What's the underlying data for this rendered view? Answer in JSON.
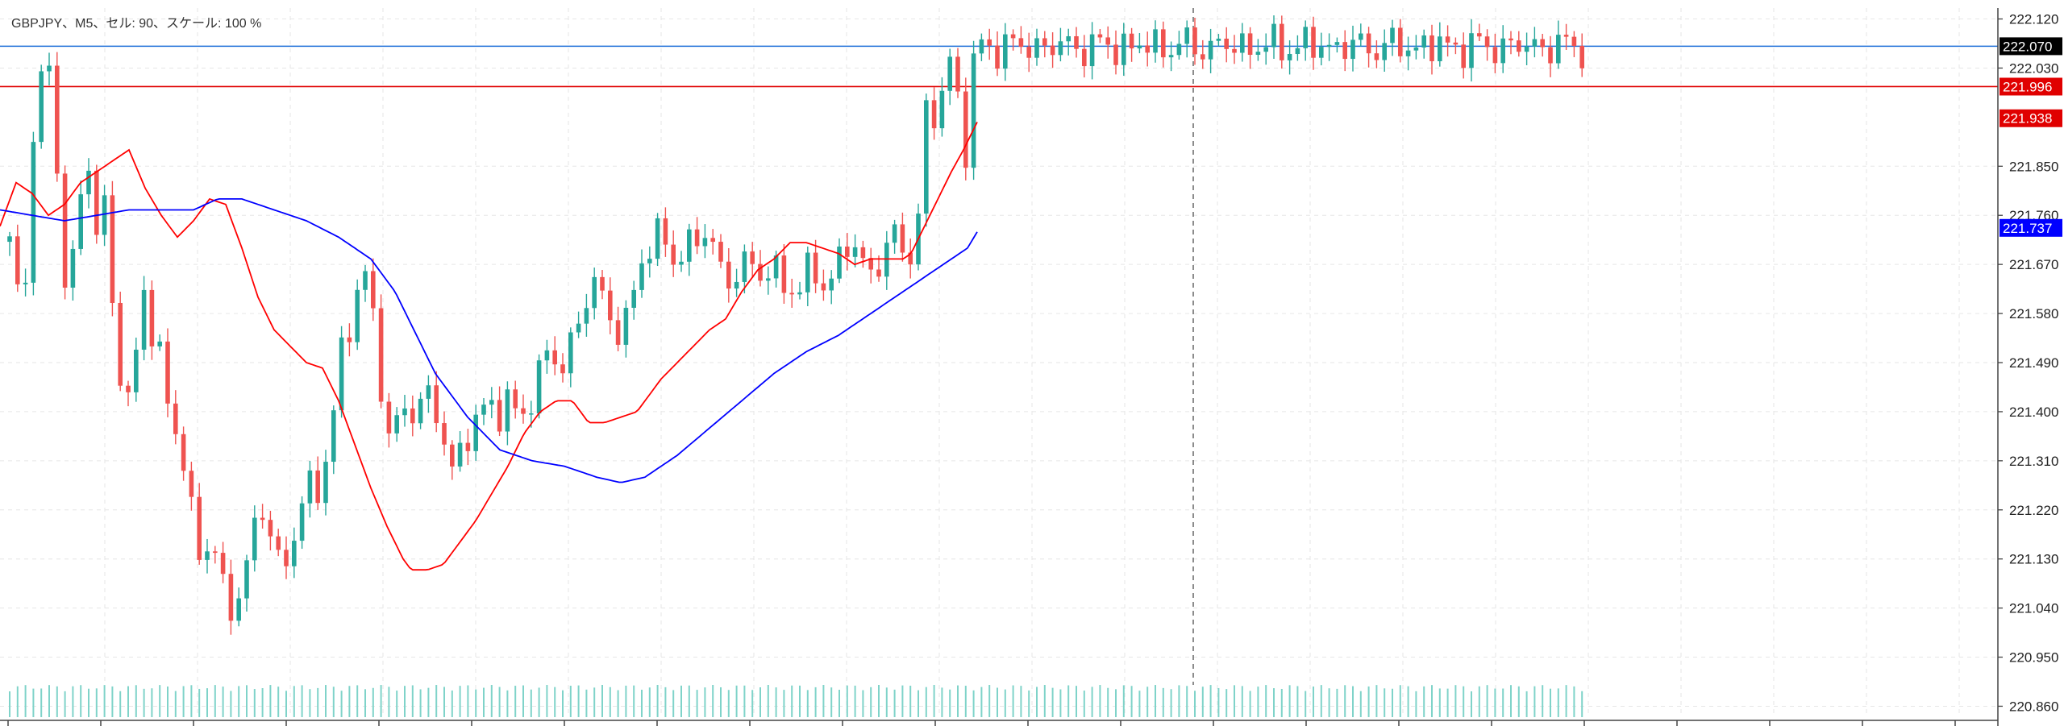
{
  "header": {
    "title": "GBPJPY、M5、セル: 90、スケール: 100 %"
  },
  "colors": {
    "bull": "#26a69a",
    "bear": "#ef5350",
    "ma_fast": "#ff0000",
    "ma_slow": "#0000ff",
    "hline_red": "#e00000",
    "hline_blue": "#1e6fd9",
    "grid": "#e6e6e6",
    "axis_text": "#222222"
  },
  "chart_data": {
    "type": "candlestick",
    "symbol": "GBPJPY",
    "timeframe": "M5",
    "ylim": [
      220.84,
      222.14
    ],
    "y_ticks": [
      "222.120",
      "222.030",
      "221.850",
      "221.760",
      "221.670",
      "221.580",
      "221.490",
      "221.400",
      "221.310",
      "221.220",
      "221.130",
      "221.040",
      "220.950",
      "220.860"
    ],
    "price_tags": [
      {
        "value": "222.070",
        "style": "current",
        "color": "#000000"
      },
      {
        "value": "221.996",
        "style": "level",
        "color": "#e00000"
      },
      {
        "value": "221.938",
        "style": "ma",
        "color": "#e00000"
      },
      {
        "value": "221.737",
        "style": "ma",
        "color": "#0000ff"
      }
    ],
    "horizontal_lines": [
      {
        "value": 222.07,
        "color": "#1e6fd9"
      },
      {
        "value": 221.996,
        "color": "#e00000"
      }
    ],
    "grid": true,
    "ma_fast_period_label": "",
    "ma_slow_period_label": "",
    "candle_count": 200,
    "anchors": [
      [
        0,
        221.93
      ],
      [
        8,
        221.86
      ],
      [
        12,
        221.7
      ],
      [
        22,
        221.62
      ],
      [
        30,
        221.56
      ],
      [
        36,
        221.84
      ],
      [
        46,
        222.02
      ],
      [
        56,
        221.98
      ],
      [
        62,
        222.03
      ],
      [
        68,
        221.95
      ],
      [
        74,
        221.7
      ],
      [
        80,
        221.66
      ],
      [
        86,
        221.62
      ],
      [
        92,
        221.7
      ],
      [
        100,
        221.8
      ],
      [
        112,
        221.86
      ],
      [
        120,
        221.72
      ],
      [
        128,
        221.8
      ],
      [
        140,
        221.6
      ],
      [
        152,
        221.44
      ],
      [
        162,
        221.41
      ],
      [
        168,
        221.48
      ],
      [
        178,
        221.63
      ],
      [
        186,
        221.56
      ],
      [
        196,
        221.53
      ],
      [
        204,
        221.45
      ],
      [
        212,
        221.38
      ],
      [
        222,
        221.34
      ],
      [
        232,
        221.28
      ],
      [
        240,
        221.18
      ],
      [
        252,
        221.13
      ],
      [
        262,
        221.18
      ],
      [
        272,
        221.1
      ],
      [
        282,
        221.02
      ],
      [
        292,
        221.06
      ],
      [
        302,
        221.1
      ],
      [
        312,
        221.16
      ],
      [
        322,
        221.22
      ],
      [
        332,
        221.2
      ],
      [
        342,
        221.14
      ],
      [
        352,
        221.11
      ],
      [
        362,
        221.16
      ],
      [
        372,
        221.22
      ],
      [
        382,
        221.26
      ],
      [
        392,
        221.24
      ],
      [
        400,
        221.3
      ],
      [
        410,
        221.36
      ],
      [
        420,
        221.48
      ],
      [
        432,
        221.54
      ],
      [
        440,
        221.6
      ],
      [
        448,
        221.66
      ],
      [
        456,
        221.66
      ],
      [
        464,
        221.56
      ],
      [
        476,
        221.4
      ],
      [
        484,
        221.33
      ],
      [
        496,
        221.4
      ],
      [
        506,
        221.42
      ],
      [
        518,
        221.4
      ],
      [
        528,
        221.43
      ],
      [
        538,
        221.4
      ],
      [
        546,
        221.38
      ],
      [
        554,
        221.34
      ],
      [
        562,
        221.29
      ],
      [
        572,
        221.33
      ],
      [
        584,
        221.36
      ],
      [
        596,
        221.4
      ],
      [
        608,
        221.42
      ],
      [
        622,
        221.4
      ],
      [
        632,
        221.42
      ],
      [
        642,
        221.38
      ],
      [
        652,
        221.4
      ],
      [
        660,
        221.44
      ],
      [
        670,
        221.48
      ],
      [
        680,
        221.51
      ],
      [
        688,
        221.49
      ],
      [
        698,
        221.48
      ],
      [
        706,
        221.52
      ],
      [
        716,
        221.56
      ],
      [
        724,
        221.6
      ],
      [
        734,
        221.64
      ],
      [
        742,
        221.62
      ],
      [
        752,
        221.58
      ],
      [
        764,
        221.56
      ],
      [
        774,
        221.56
      ],
      [
        784,
        221.6
      ],
      [
        794,
        221.66
      ],
      [
        804,
        221.7
      ],
      [
        814,
        221.73
      ],
      [
        826,
        221.72
      ],
      [
        836,
        221.67
      ],
      [
        846,
        221.68
      ],
      [
        856,
        221.7
      ],
      [
        866,
        221.73
      ],
      [
        876,
        221.74
      ],
      [
        886,
        221.7
      ],
      [
        896,
        221.63
      ],
      [
        906,
        221.64
      ],
      [
        916,
        221.66
      ],
      [
        926,
        221.69
      ],
      [
        936,
        221.66
      ],
      [
        948,
        221.64
      ],
      [
        960,
        221.66
      ],
      [
        972,
        221.64
      ],
      [
        982,
        221.63
      ],
      [
        992,
        221.62
      ],
      [
        1002,
        221.65
      ],
      [
        1012,
        221.66
      ],
      [
        1022,
        221.63
      ],
      [
        1032,
        221.65
      ],
      [
        1042,
        221.68
      ],
      [
        1052,
        221.71
      ],
      [
        1062,
        221.69
      ],
      [
        1072,
        221.67
      ],
      [
        1082,
        221.66
      ],
      [
        1092,
        221.68
      ],
      [
        1102,
        221.7
      ],
      [
        1112,
        221.72
      ],
      [
        1122,
        221.7
      ],
      [
        1132,
        221.69
      ],
      [
        1140,
        221.77
      ],
      [
        1146,
        221.92
      ],
      [
        1152,
        221.97
      ],
      [
        1158,
        221.94
      ],
      [
        1164,
        221.93
      ],
      [
        1172,
        222.03
      ],
      [
        1178,
        222.05
      ],
      [
        1184,
        222.05
      ],
      [
        1190,
        221.94
      ],
      [
        1196,
        221.86
      ],
      [
        1202,
        221.93
      ],
      [
        1208,
        222.04
      ],
      [
        1212,
        222.06
      ],
      [
        1215,
        222.07
      ]
    ],
    "ma_fast_anchors": [
      [
        0,
        221.74
      ],
      [
        20,
        221.82
      ],
      [
        40,
        221.8
      ],
      [
        60,
        221.76
      ],
      [
        80,
        221.78
      ],
      [
        100,
        221.82
      ],
      [
        120,
        221.84
      ],
      [
        140,
        221.86
      ],
      [
        160,
        221.88
      ],
      [
        180,
        221.81
      ],
      [
        200,
        221.76
      ],
      [
        220,
        221.72
      ],
      [
        240,
        221.75
      ],
      [
        260,
        221.79
      ],
      [
        280,
        221.78
      ],
      [
        300,
        221.7
      ],
      [
        320,
        221.61
      ],
      [
        340,
        221.55
      ],
      [
        360,
        221.52
      ],
      [
        380,
        221.49
      ],
      [
        400,
        221.48
      ],
      [
        420,
        221.42
      ],
      [
        440,
        221.34
      ],
      [
        460,
        221.26
      ],
      [
        480,
        221.19
      ],
      [
        500,
        221.13
      ],
      [
        510,
        221.11
      ],
      [
        530,
        221.11
      ],
      [
        550,
        221.12
      ],
      [
        570,
        221.16
      ],
      [
        590,
        221.2
      ],
      [
        610,
        221.25
      ],
      [
        630,
        221.3
      ],
      [
        650,
        221.36
      ],
      [
        670,
        221.4
      ],
      [
        690,
        221.42
      ],
      [
        710,
        221.42
      ],
      [
        730,
        221.38
      ],
      [
        750,
        221.38
      ],
      [
        770,
        221.39
      ],
      [
        790,
        221.4
      ],
      [
        800,
        221.42
      ],
      [
        820,
        221.46
      ],
      [
        840,
        221.49
      ],
      [
        860,
        221.52
      ],
      [
        880,
        221.55
      ],
      [
        900,
        221.57
      ],
      [
        920,
        221.62
      ],
      [
        940,
        221.66
      ],
      [
        960,
        221.68
      ],
      [
        980,
        221.71
      ],
      [
        1000,
        221.71
      ],
      [
        1020,
        221.7
      ],
      [
        1040,
        221.69
      ],
      [
        1060,
        221.67
      ],
      [
        1080,
        221.68
      ],
      [
        1100,
        221.68
      ],
      [
        1120,
        221.68
      ],
      [
        1130,
        221.69
      ],
      [
        1140,
        221.72
      ],
      [
        1160,
        221.78
      ],
      [
        1180,
        221.84
      ],
      [
        1195,
        221.88
      ],
      [
        1205,
        221.91
      ],
      [
        1215,
        221.94
      ]
    ],
    "ma_slow_anchors": [
      [
        0,
        221.77
      ],
      [
        40,
        221.76
      ],
      [
        80,
        221.75
      ],
      [
        120,
        221.76
      ],
      [
        160,
        221.77
      ],
      [
        200,
        221.77
      ],
      [
        240,
        221.77
      ],
      [
        270,
        221.79
      ],
      [
        300,
        221.79
      ],
      [
        340,
        221.77
      ],
      [
        380,
        221.75
      ],
      [
        420,
        221.72
      ],
      [
        460,
        221.68
      ],
      [
        490,
        221.62
      ],
      [
        510,
        221.56
      ],
      [
        540,
        221.47
      ],
      [
        580,
        221.39
      ],
      [
        620,
        221.33
      ],
      [
        660,
        221.31
      ],
      [
        700,
        221.3
      ],
      [
        740,
        221.28
      ],
      [
        770,
        221.27
      ],
      [
        800,
        221.28
      ],
      [
        840,
        221.32
      ],
      [
        880,
        221.37
      ],
      [
        920,
        221.42
      ],
      [
        960,
        221.47
      ],
      [
        1000,
        221.51
      ],
      [
        1040,
        221.54
      ],
      [
        1080,
        221.58
      ],
      [
        1120,
        221.62
      ],
      [
        1160,
        221.66
      ],
      [
        1200,
        221.7
      ],
      [
        1215,
        221.737
      ]
    ]
  }
}
